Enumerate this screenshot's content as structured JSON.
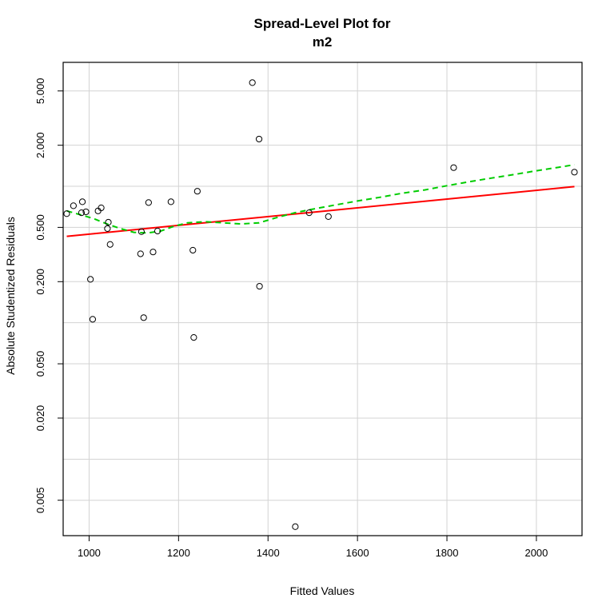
{
  "chart_data": {
    "type": "scatter",
    "title_line1": "Spread-Level Plot for",
    "title_line2": "m2",
    "xlabel": "Fitted Values",
    "ylabel": "Absolute Studentized Residuals",
    "y_scale": "log",
    "xlim": [
      942,
      2102
    ],
    "ylim": [
      0.00275,
      8.1
    ],
    "x_ticks": [
      1000,
      1200,
      1400,
      1600,
      1800,
      2000
    ],
    "x_tick_labels": [
      "1000",
      "1200",
      "1400",
      "1600",
      "1800",
      "2000"
    ],
    "y_ticks": [
      0.005,
      0.02,
      0.05,
      0.2,
      0.5,
      2,
      5
    ],
    "y_tick_labels": [
      "0.005",
      "0.020",
      "0.050",
      "0.200",
      "0.500",
      "2.000",
      "5.000"
    ],
    "grid_x": [
      1000,
      1200,
      1400,
      1600,
      1800,
      2000
    ],
    "grid_y": [
      0.005,
      0.01,
      0.02,
      0.05,
      0.1,
      0.2,
      0.5,
      1,
      2,
      5
    ],
    "grid": true,
    "points": [
      {
        "x": 950,
        "y": 0.63
      },
      {
        "x": 965,
        "y": 0.72
      },
      {
        "x": 983,
        "y": 0.64
      },
      {
        "x": 985,
        "y": 0.77
      },
      {
        "x": 993,
        "y": 0.65
      },
      {
        "x": 1003,
        "y": 0.208
      },
      {
        "x": 1008,
        "y": 0.106
      },
      {
        "x": 1020,
        "y": 0.66
      },
      {
        "x": 1027,
        "y": 0.695
      },
      {
        "x": 1041,
        "y": 0.49
      },
      {
        "x": 1043,
        "y": 0.545
      },
      {
        "x": 1047,
        "y": 0.375
      },
      {
        "x": 1115,
        "y": 0.32
      },
      {
        "x": 1117,
        "y": 0.465
      },
      {
        "x": 1122,
        "y": 0.109
      },
      {
        "x": 1133,
        "y": 0.76
      },
      {
        "x": 1143,
        "y": 0.33
      },
      {
        "x": 1153,
        "y": 0.47
      },
      {
        "x": 1183,
        "y": 0.77
      },
      {
        "x": 1232,
        "y": 0.34
      },
      {
        "x": 1234,
        "y": 0.078
      },
      {
        "x": 1242,
        "y": 0.92
      },
      {
        "x": 1365,
        "y": 5.75
      },
      {
        "x": 1380,
        "y": 2.22
      },
      {
        "x": 1381,
        "y": 0.185
      },
      {
        "x": 1461,
        "y": 0.0032
      },
      {
        "x": 1492,
        "y": 0.64
      },
      {
        "x": 1535,
        "y": 0.6
      },
      {
        "x": 1815,
        "y": 1.37
      },
      {
        "x": 2085,
        "y": 1.27
      }
    ],
    "series": [
      {
        "color": "#ff0000",
        "style": "solid",
        "x": [
          950,
          2085
        ],
        "y": [
          0.43,
          0.995
        ]
      },
      {
        "color": "#00cc00",
        "style": "dashed",
        "x": [
          950,
          980,
          1010,
          1040,
          1070,
          1100,
          1130,
          1160,
          1190,
          1220,
          1260,
          1300,
          1340,
          1380,
          1420,
          1460,
          1500,
          1550,
          1600,
          1650,
          1700,
          1750,
          1800,
          1850,
          1900,
          1950,
          2000,
          2050,
          2085
        ],
        "y": [
          0.66,
          0.62,
          0.58,
          0.53,
          0.49,
          0.46,
          0.455,
          0.47,
          0.51,
          0.54,
          0.55,
          0.54,
          0.53,
          0.54,
          0.59,
          0.64,
          0.68,
          0.73,
          0.78,
          0.83,
          0.89,
          0.94,
          1.01,
          1.08,
          1.15,
          1.22,
          1.3,
          1.38,
          1.44
        ]
      }
    ]
  }
}
